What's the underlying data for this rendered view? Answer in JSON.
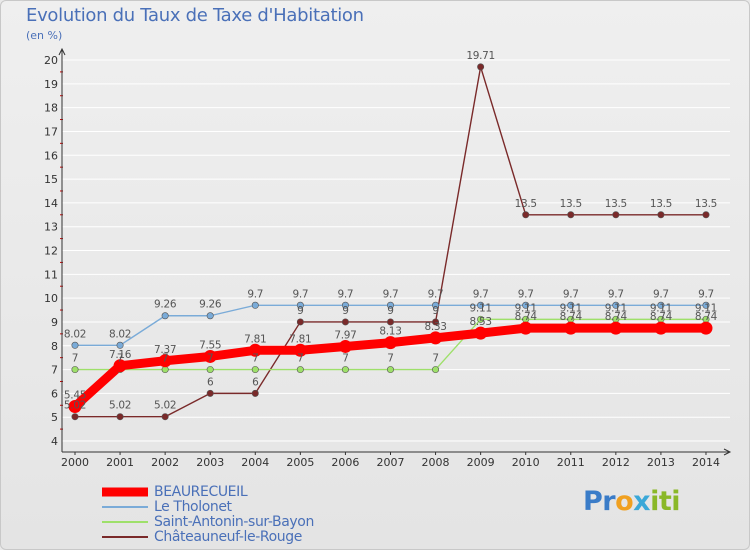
{
  "header": {
    "title": "Evolution du Taux de Taxe d'Habitation",
    "unit": "(en %)"
  },
  "logo": {
    "text": "Proxiti",
    "parts": [
      "Pr",
      "o",
      "x",
      "iti"
    ]
  },
  "colors": {
    "background": "#e9e9e9",
    "grid": "#ffffff",
    "axis_text": "#333333",
    "label_text": "#555555"
  },
  "chart_data": {
    "type": "line",
    "title": "Evolution du Taux de Taxe d'Habitation",
    "ylabel": "(en %)",
    "xlabel": "",
    "categories": [
      "2000",
      "2001",
      "2002",
      "2003",
      "2004",
      "2005",
      "2006",
      "2007",
      "2008",
      "2009",
      "2010",
      "2011",
      "2012",
      "2013",
      "2014"
    ],
    "y_ticks": [
      4,
      5,
      6,
      7,
      8,
      9,
      10,
      11,
      12,
      13,
      14,
      15,
      16,
      17,
      18,
      19,
      20
    ],
    "ylim": [
      4,
      20
    ],
    "grid": "horizontal",
    "legend_position": "bottom-left",
    "series": [
      {
        "name": "BEAUREC​UEIL",
        "label": "BEAURECUEIL",
        "color": "#ff0000",
        "emphasis": true,
        "values": [
          5.45,
          7.16,
          7.37,
          7.55,
          7.81,
          7.81,
          7.97,
          8.13,
          8.33,
          8.53,
          8.74,
          8.74,
          8.74,
          8.74,
          8.74
        ],
        "labels": [
          "5.45",
          "7.16",
          "7.37",
          "7.55",
          "7.81",
          "7.81",
          "7.97",
          "8.13",
          "8.33",
          "8.53",
          "8.74",
          "8.74",
          "8.74",
          "8.74",
          "8.74"
        ]
      },
      {
        "name": "Le Tholonet",
        "label": "Le Tholonet",
        "color": "#7aabd8",
        "emphasis": false,
        "values": [
          8.02,
          8.02,
          9.26,
          9.26,
          9.7,
          9.7,
          9.7,
          9.7,
          9.7,
          9.7,
          9.7,
          9.7,
          9.7,
          9.7,
          9.7
        ],
        "labels": [
          "8.02",
          "8.02",
          "9.26",
          "9.26",
          "9.7",
          "9.7",
          "9.7",
          "9.7",
          "9.7",
          "9.7",
          "9.7",
          "9.7",
          "9.7",
          "9.7",
          "9.7"
        ]
      },
      {
        "name": "Saint-Antonin-sur-Bayon",
        "label": "Saint-Antonin-sur-Bayon",
        "color": "#9ee06a",
        "emphasis": false,
        "values": [
          7,
          7,
          7,
          7,
          7,
          7,
          7,
          7,
          7,
          9.11,
          9.11,
          9.11,
          9.11,
          9.11,
          9.11
        ],
        "labels": [
          "7",
          "7",
          "7",
          "7",
          "7",
          "7",
          "7",
          "7",
          "7",
          "9.11",
          "9.11",
          "9.11",
          "9.11",
          "9.11",
          "9.11"
        ]
      },
      {
        "name": "Châteauneuf-le-Rouge",
        "label": "Châteauneuf-le-Rouge",
        "color": "#7a2a2a",
        "emphasis": false,
        "values": [
          5.02,
          5.02,
          5.02,
          6,
          6,
          9,
          9,
          9,
          9,
          19.71,
          13.5,
          13.5,
          13.5,
          13.5,
          13.5
        ],
        "labels": [
          "5.02",
          "5.02",
          "5.02",
          "6",
          "6",
          "9",
          "9",
          "9",
          "9",
          "19.71",
          "13.5",
          "13.5",
          "13.5",
          "13.5",
          "13.5"
        ]
      }
    ]
  }
}
